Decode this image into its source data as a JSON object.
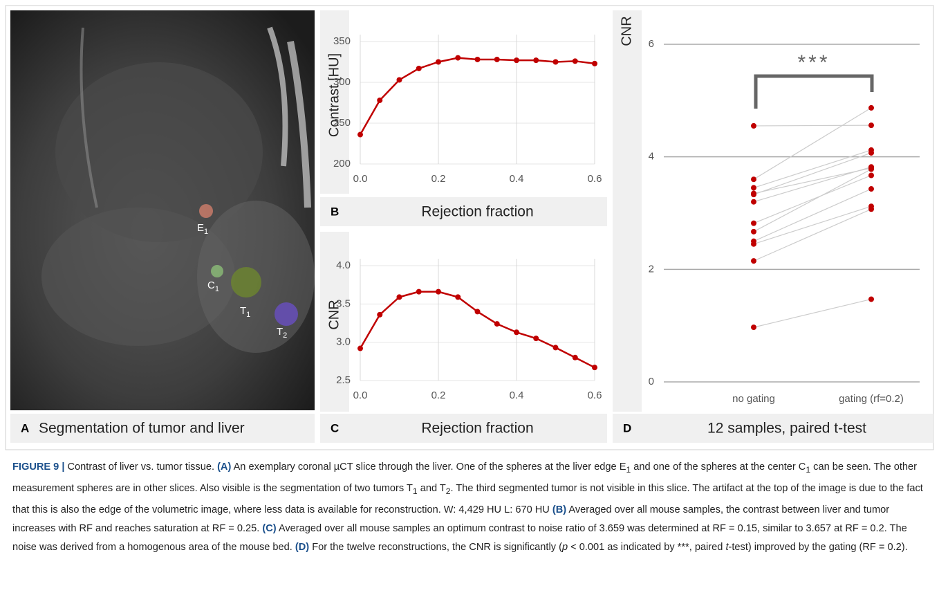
{
  "panel_a": {
    "label": "A",
    "title": "Segmentation of tumor and liver",
    "markers": [
      {
        "letter": "E",
        "sub": "1",
        "color": "#d9826e"
      },
      {
        "letter": "C",
        "sub": "1",
        "color": "#8fc47a"
      },
      {
        "letter": "T",
        "sub": "1",
        "color": "#6f8a2c"
      },
      {
        "letter": "T",
        "sub": "2",
        "color": "#6b4fc9"
      }
    ]
  },
  "chart_data": [
    {
      "type": "line",
      "panel": "B",
      "y_label": "Contrast  [HU]",
      "x_label": "Rejection fraction",
      "x": [
        0,
        0.05,
        0.1,
        0.15,
        0.2,
        0.25,
        0.3,
        0.35,
        0.4,
        0.45,
        0.5,
        0.55,
        0.6
      ],
      "series": [
        {
          "color": "#c00000",
          "values": [
            236,
            278,
            303,
            317,
            325,
            330,
            328,
            328,
            327,
            327,
            325,
            326,
            323
          ]
        }
      ],
      "xlim": [
        0,
        0.6
      ],
      "xticks": [
        {
          "value": 0,
          "label": "0.0"
        },
        0.2,
        0.4,
        0.6
      ],
      "ylim": [
        200,
        350
      ],
      "yticks": [
        200,
        250,
        300,
        350
      ],
      "grid": true
    },
    {
      "type": "line",
      "panel": "C",
      "y_label": "CNR",
      "x_label": "Rejection fraction",
      "x": [
        0,
        0.05,
        0.1,
        0.15,
        0.2,
        0.25,
        0.3,
        0.35,
        0.4,
        0.45,
        0.5,
        0.55,
        0.6
      ],
      "series": [
        {
          "color": "#c00000",
          "values": [
            2.92,
            3.36,
            3.59,
            3.66,
            3.66,
            3.59,
            3.4,
            3.24,
            3.13,
            3.05,
            2.93,
            2.8,
            2.67
          ]
        }
      ],
      "xlim": [
        0,
        0.6
      ],
      "xticks": [
        {
          "value": 0,
          "label": "0.0"
        },
        0.2,
        0.4,
        0.6
      ],
      "ylim": [
        2.5,
        4.0
      ],
      "yticks": [
        2.5,
        {
          "value": 3,
          "label": "3.0"
        },
        3.5,
        {
          "value": 4,
          "label": "4.0"
        }
      ],
      "grid": true
    },
    {
      "type": "paired",
      "panel": "D",
      "y_label": "CNR",
      "x_label": "12 samples, paired t-test",
      "categories": [
        "no gating",
        "gating (rf=0.2)"
      ],
      "color": "#c00000",
      "line_color": "#cccccc",
      "series": [
        {
          "values": [
            4.55,
            4.56
          ]
        },
        {
          "values": [
            3.6,
            4.87
          ]
        },
        {
          "values": [
            3.45,
            4.12
          ]
        },
        {
          "values": [
            3.35,
            3.8
          ]
        },
        {
          "values": [
            3.33,
            4.07
          ]
        },
        {
          "values": [
            3.2,
            3.82
          ]
        },
        {
          "values": [
            2.82,
            3.67
          ]
        },
        {
          "values": [
            2.67,
            3.78
          ]
        },
        {
          "values": [
            2.5,
            3.43
          ]
        },
        {
          "values": [
            2.45,
            3.12
          ]
        },
        {
          "values": [
            2.15,
            3.07
          ]
        },
        {
          "values": [
            0.97,
            1.47
          ]
        }
      ],
      "ylim": [
        0,
        6
      ],
      "yticks": [
        0,
        2,
        4,
        6
      ],
      "grid": true,
      "annotation": "***"
    }
  ],
  "caption": [
    {
      "text": "FIGURE 9 |",
      "style": "bold"
    },
    {
      "text": " Contrast of liver vs. tumor tissue. "
    },
    {
      "text": "(A)",
      "style": "bold"
    },
    {
      "text": " An exemplary coronal µCT slice through the liver. One of the spheres at the liver edge E"
    },
    {
      "text": "1",
      "style": "sub"
    },
    {
      "text": " and one of the spheres at the center C"
    },
    {
      "text": "1",
      "style": "sub"
    },
    {
      "text": " can be seen. The other measurement spheres are in other slices. Also visible is the segmentation of two tumors T"
    },
    {
      "text": "1",
      "style": "sub"
    },
    {
      "text": " and T"
    },
    {
      "text": "2",
      "style": "sub"
    },
    {
      "text": ". The third segmented tumor is not visible in this slice. The artifact at the top of the image is due to the fact that this is also the edge of the volumetric image, where less data is available for reconstruction. W: 4,429 HU L: 670 HU "
    },
    {
      "text": "(B)",
      "style": "bold"
    },
    {
      "text": " Averaged over all mouse samples, the contrast between liver and tumor increases with RF and reaches saturation at RF = 0.25. "
    },
    {
      "text": "(C)",
      "style": "bold"
    },
    {
      "text": " Averaged over all mouse samples an optimum contrast to noise ratio of 3.659 was determined at RF = 0.15, similar to 3.657 at RF = 0.2. The noise was derived from a homogenous area of the mouse bed. "
    },
    {
      "text": "(D)",
      "style": "bold"
    },
    {
      "text": " For the twelve reconstructions, the CNR is significantly ("
    },
    {
      "text": "p",
      "style": "italic"
    },
    {
      "text": " < 0.001 as indicated by ***, paired "
    },
    {
      "text": "t",
      "style": "italic"
    },
    {
      "text": "-test) improved by the gating (RF = 0.2)."
    }
  ]
}
